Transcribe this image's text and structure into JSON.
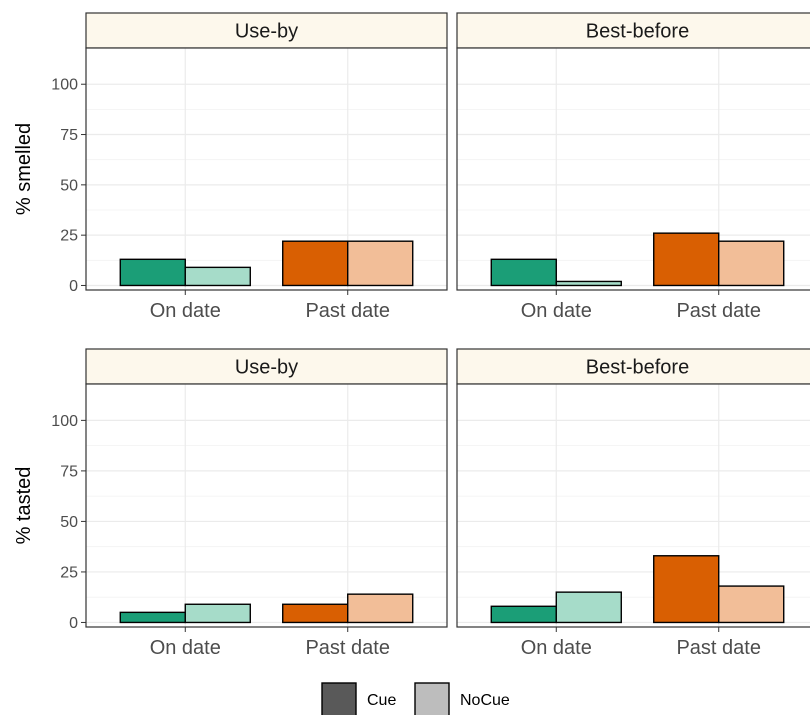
{
  "chart_data": {
    "type": "bar",
    "facet_columns": [
      "Use-by",
      "Best-before"
    ],
    "categories": [
      "On date",
      "Past date"
    ],
    "ylim": [
      0,
      100
    ],
    "yticks": [
      0,
      25,
      50,
      75,
      100
    ],
    "grid": true,
    "legend": {
      "placement": "bottom",
      "entries": [
        {
          "name": "Cue",
          "color": "#595959"
        },
        {
          "name": "NoCue",
          "color": "#bdbdbd"
        }
      ]
    },
    "colors": {
      "On date": {
        "Cue": "#1b9e77",
        "NoCue": "#a6dcc9"
      },
      "Past date": {
        "Cue": "#d95f02",
        "NoCue": "#f2be98"
      }
    },
    "rows": [
      {
        "ylabel": "% smelled",
        "panels": [
          {
            "title": "Use-by",
            "series": [
              {
                "name": "Cue",
                "values": [
                  13,
                  22
                ]
              },
              {
                "name": "NoCue",
                "values": [
                  9,
                  22
                ]
              }
            ]
          },
          {
            "title": "Best-before",
            "series": [
              {
                "name": "Cue",
                "values": [
                  13,
                  26
                ]
              },
              {
                "name": "NoCue",
                "values": [
                  2,
                  22
                ]
              }
            ]
          }
        ]
      },
      {
        "ylabel": "% tasted",
        "panels": [
          {
            "title": "Use-by",
            "series": [
              {
                "name": "Cue",
                "values": [
                  5,
                  9
                ]
              },
              {
                "name": "NoCue",
                "values": [
                  9,
                  14
                ]
              }
            ]
          },
          {
            "title": "Best-before",
            "series": [
              {
                "name": "Cue",
                "values": [
                  8,
                  33
                ]
              },
              {
                "name": "NoCue",
                "values": [
                  15,
                  18
                ]
              }
            ]
          }
        ]
      }
    ]
  }
}
